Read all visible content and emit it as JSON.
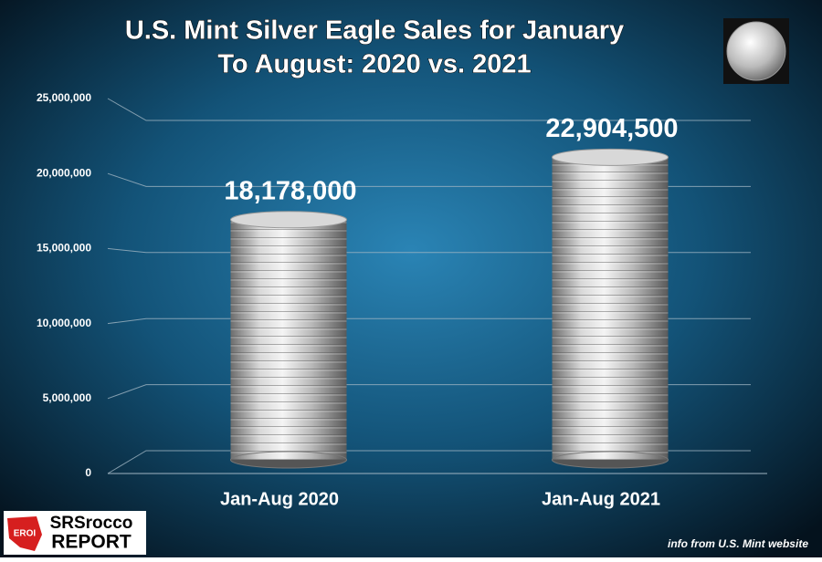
{
  "chart_data": {
    "type": "bar",
    "title": [
      "U.S. Mint Silver Eagle Sales for January",
      "To August:  2020 vs. 2021"
    ],
    "categories": [
      "Jan-Aug 2020",
      "Jan-Aug 2021"
    ],
    "values": [
      18178000,
      22904500
    ],
    "value_labels": [
      "18,178,000",
      "22,904,500"
    ],
    "color": "#c8c8c8",
    "ylim": [
      0,
      25000000
    ],
    "yticks": [
      {
        "value": 0,
        "label": "0"
      },
      {
        "value": 5000000,
        "label": "5,000,000"
      },
      {
        "value": 10000000,
        "label": "10,000,000"
      },
      {
        "value": 15000000,
        "label": "15,000,000"
      },
      {
        "value": 20000000,
        "label": "20,000,000"
      },
      {
        "value": 25000000,
        "label": "25,000,000"
      }
    ],
    "grid": true,
    "source": "info from U.S. Mint website",
    "logo": {
      "badge": "EROI",
      "line1": "SRSrocco",
      "line2": "REPORT"
    }
  }
}
